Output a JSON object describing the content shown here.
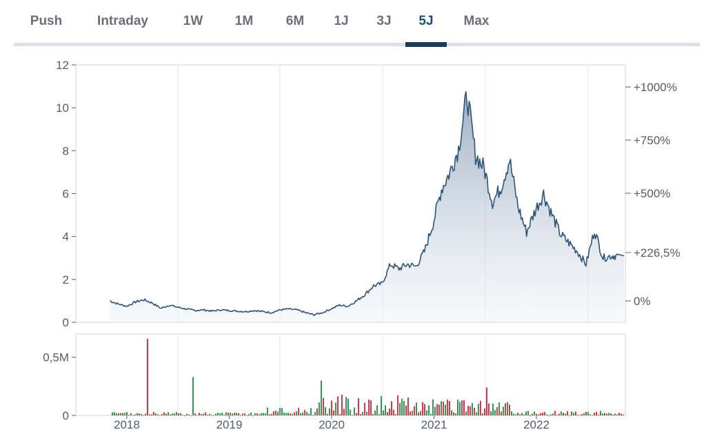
{
  "tabs": [
    {
      "label": "Push",
      "active": false
    },
    {
      "label": "Intraday",
      "active": false
    },
    {
      "label": "1W",
      "active": false
    },
    {
      "label": "1M",
      "active": false
    },
    {
      "label": "6M",
      "active": false
    },
    {
      "label": "1J",
      "active": false
    },
    {
      "label": "3J",
      "active": false
    },
    {
      "label": "5J",
      "active": true
    },
    {
      "label": "Max",
      "active": false
    }
  ],
  "colors": {
    "accent": "#1b3a5b",
    "price_line": "#2d5478",
    "highlight_label": "#3f9a5e",
    "volume_up": "#2e9a52",
    "volume_down": "#e0334b"
  },
  "chart_data": {
    "type": "area",
    "grid": true,
    "x_ticks": [
      "2018",
      "2019",
      "2020",
      "2021",
      "2022"
    ],
    "y_left": {
      "ticks": [
        "0",
        "2",
        "4",
        "6",
        "8",
        "10",
        "12"
      ],
      "range": [
        0,
        12
      ]
    },
    "y_right": {
      "ticks": [
        "+1000%",
        "+750%",
        "+500%",
        "+226,5%",
        "0%"
      ],
      "highlight": "+226,5%"
    },
    "price_series": {
      "x": [
        "2017-11",
        "2017-12",
        "2018-01",
        "2018-02",
        "2018-03",
        "2018-04",
        "2018-05",
        "2018-06",
        "2018-07",
        "2018-08",
        "2018-09",
        "2018-10",
        "2018-11",
        "2018-12",
        "2019-01",
        "2019-02",
        "2019-03",
        "2019-04",
        "2019-05",
        "2019-06",
        "2019-07",
        "2019-08",
        "2019-09",
        "2019-10",
        "2019-11",
        "2019-12",
        "2020-01",
        "2020-02",
        "2020-03",
        "2020-04",
        "2020-05",
        "2020-06",
        "2020-07",
        "2020-08",
        "2020-09",
        "2020-10",
        "2020-11",
        "2020-12",
        "2021-01",
        "2021-02",
        "2021-03",
        "2021-04",
        "2021-05",
        "2021-06",
        "2021-07",
        "2021-08",
        "2021-09",
        "2021-10",
        "2021-11",
        "2021-12",
        "2022-01",
        "2022-02",
        "2022-03",
        "2022-04",
        "2022-05",
        "2022-06",
        "2022-07",
        "2022-08",
        "2022-09",
        "2022-10"
      ],
      "values": [
        1.0,
        0.85,
        0.75,
        0.95,
        1.05,
        0.9,
        0.65,
        0.8,
        0.7,
        0.62,
        0.55,
        0.58,
        0.52,
        0.58,
        0.55,
        0.52,
        0.5,
        0.55,
        0.5,
        0.45,
        0.58,
        0.62,
        0.58,
        0.45,
        0.35,
        0.45,
        0.62,
        0.8,
        0.75,
        1.0,
        1.3,
        1.7,
        1.8,
        2.7,
        2.5,
        2.7,
        2.6,
        3.3,
        4.6,
        6.2,
        7.0,
        8.1,
        10.6,
        7.8,
        7.2,
        5.6,
        6.3,
        7.6,
        5.4,
        4.2,
        5.2,
        6.0,
        5.0,
        4.1,
        3.7,
        3.3,
        2.7,
        4.3,
        3.0,
        3.1
      ]
    },
    "volume": {
      "y_ticks": [
        "0",
        "0,5M"
      ],
      "range": [
        0,
        0.7
      ]
    }
  }
}
